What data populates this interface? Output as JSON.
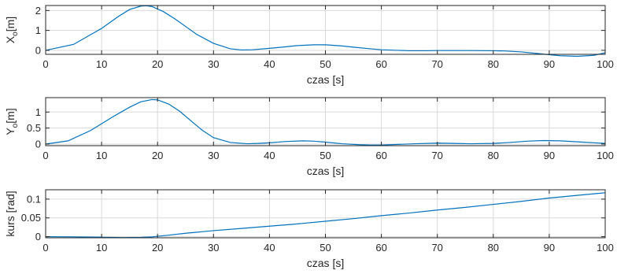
{
  "chart_data": [
    {
      "type": "line",
      "title": "",
      "xlabel": "czas [s]",
      "ylabel_main": "X",
      "ylabel_sub": "o",
      "ylabel_suffix": "[m]",
      "xlim": [
        0,
        100
      ],
      "ylim": [
        -0.2,
        2.25
      ],
      "xticks": [
        0,
        10,
        20,
        30,
        40,
        50,
        60,
        70,
        80,
        90,
        100
      ],
      "yticks": [
        0,
        1,
        2
      ],
      "ytick_labels": [
        "0",
        "1",
        "2"
      ],
      "grid": true,
      "color": "#0072bd",
      "series": [
        {
          "x": [
            0,
            5,
            10,
            13,
            15,
            17,
            18,
            19,
            21,
            23,
            25,
            27,
            30,
            33,
            35,
            37,
            40,
            43,
            45,
            48,
            50,
            53,
            55,
            58,
            60,
            63,
            65,
            68,
            70,
            75,
            80,
            82,
            85,
            88,
            90,
            92,
            95,
            98,
            100
          ],
          "y": [
            0,
            0.3,
            1.1,
            1.7,
            2.05,
            2.22,
            2.24,
            2.2,
            1.95,
            1.6,
            1.2,
            0.8,
            0.35,
            0.08,
            0.02,
            0.03,
            0.1,
            0.18,
            0.24,
            0.28,
            0.28,
            0.22,
            0.16,
            0.08,
            0.03,
            0.0,
            -0.02,
            -0.02,
            -0.01,
            -0.01,
            -0.02,
            -0.03,
            -0.08,
            -0.16,
            -0.22,
            -0.27,
            -0.3,
            -0.25,
            -0.12
          ]
        }
      ]
    },
    {
      "type": "line",
      "title": "",
      "xlabel": "czas [s]",
      "ylabel_main": "Y",
      "ylabel_sub": "o",
      "ylabel_suffix": "[m]",
      "xlim": [
        0,
        100
      ],
      "ylim": [
        -0.05,
        1.45
      ],
      "xticks": [
        0,
        10,
        20,
        30,
        40,
        50,
        60,
        70,
        80,
        90,
        100
      ],
      "yticks": [
        0,
        0.5,
        1
      ],
      "ytick_labels": [
        "0",
        "0.5",
        "1"
      ],
      "grid": true,
      "color": "#0072bd",
      "series": [
        {
          "x": [
            0,
            4,
            8,
            12,
            15,
            17,
            19,
            20,
            22,
            24,
            26,
            28,
            30,
            33,
            36,
            38,
            40,
            43,
            46,
            48,
            50,
            53,
            56,
            58,
            60,
            63,
            66,
            70,
            73,
            76,
            80,
            83,
            86,
            89,
            92,
            95,
            100
          ],
          "y": [
            0,
            0.1,
            0.42,
            0.85,
            1.15,
            1.32,
            1.39,
            1.38,
            1.25,
            1.02,
            0.72,
            0.43,
            0.2,
            0.05,
            0.01,
            0.02,
            0.04,
            0.08,
            0.1,
            0.09,
            0.06,
            0.01,
            -0.02,
            -0.03,
            -0.03,
            -0.01,
            0.01,
            0.03,
            0.02,
            0.01,
            0.02,
            0.05,
            0.09,
            0.11,
            0.1,
            0.07,
            0.02
          ]
        }
      ]
    },
    {
      "type": "line",
      "title": "",
      "xlabel": "czas [s]",
      "ylabel_main": "kurs [rad]",
      "ylabel_sub": "",
      "ylabel_suffix": "",
      "xlim": [
        0,
        100
      ],
      "ylim": [
        -0.003,
        0.125
      ],
      "xticks": [
        0,
        10,
        20,
        30,
        40,
        50,
        60,
        70,
        80,
        90,
        100
      ],
      "yticks": [
        0,
        0.05,
        0.1
      ],
      "ytick_labels": [
        "0",
        "0.05",
        "0.1"
      ],
      "grid": true,
      "color": "#0072bd",
      "series": [
        {
          "x": [
            0,
            5,
            10,
            14,
            17,
            19,
            20,
            22,
            25,
            30,
            35,
            40,
            45,
            50,
            55,
            60,
            65,
            70,
            75,
            80,
            85,
            90,
            95,
            100
          ],
          "y": [
            0,
            -0.0005,
            -0.0015,
            -0.0025,
            -0.002,
            -0.0005,
            0.001,
            0.004,
            0.009,
            0.016,
            0.022,
            0.028,
            0.034,
            0.041,
            0.048,
            0.056,
            0.063,
            0.071,
            0.078,
            0.086,
            0.094,
            0.103,
            0.11,
            0.117
          ]
        }
      ]
    }
  ]
}
